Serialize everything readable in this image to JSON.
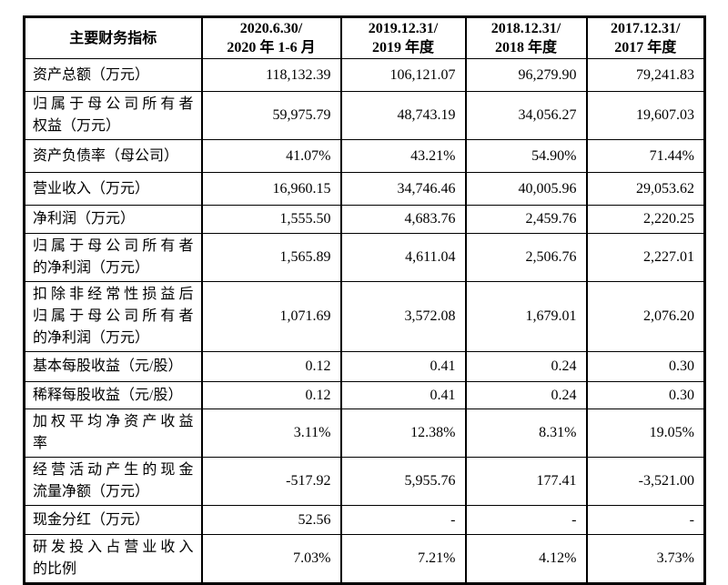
{
  "colors": {
    "border": "#000000",
    "text": "#000000",
    "background": "#ffffff"
  },
  "table": {
    "header": {
      "indicator_label": "主要财务指标",
      "periods": [
        "2020.6.30/\n2020 年 1-6 月",
        "2019.12.31/\n2019 年度",
        "2018.12.31/\n2018 年度",
        "2017.12.31/\n2017 年度"
      ]
    },
    "rows": [
      {
        "label": "资产总额（万元）",
        "values": [
          "118,132.39",
          "106,121.07",
          "96,279.90",
          "79,241.83"
        ]
      },
      {
        "label": "归属于母公司所有者\n权益（万元）",
        "values": [
          "59,975.79",
          "48,743.19",
          "34,056.27",
          "19,607.03"
        ]
      },
      {
        "label": "资产负债率（母公司）",
        "values": [
          "41.07%",
          "43.21%",
          "54.90%",
          "71.44%"
        ]
      },
      {
        "label": "营业收入（万元）",
        "values": [
          "16,960.15",
          "34,746.46",
          "40,005.96",
          "29,053.62"
        ]
      },
      {
        "label": "净利润（万元）",
        "values": [
          "1,555.50",
          "4,683.76",
          "2,459.76",
          "2,220.25"
        ]
      },
      {
        "label": "归属于母公司所有者\n的净利润（万元）",
        "values": [
          "1,565.89",
          "4,611.04",
          "2,506.76",
          "2,227.01"
        ]
      },
      {
        "label": "扣除非经常性损益后\n归属于母公司所有者\n的净利润（万元）",
        "values": [
          "1,071.69",
          "3,572.08",
          "1,679.01",
          "2,076.20"
        ]
      },
      {
        "label": "基本每股收益（元/股）",
        "values": [
          "0.12",
          "0.41",
          "0.24",
          "0.30"
        ]
      },
      {
        "label": "稀释每股收益（元/股）",
        "values": [
          "0.12",
          "0.41",
          "0.24",
          "0.30"
        ]
      },
      {
        "label": "加权平均净资产收益\n率",
        "values": [
          "3.11%",
          "12.38%",
          "8.31%",
          "19.05%"
        ]
      },
      {
        "label": "经营活动产生的现金\n流量净额（万元）",
        "values": [
          "-517.92",
          "5,955.76",
          "177.41",
          "-3,521.00"
        ]
      },
      {
        "label": "现金分红（万元）",
        "values": [
          "52.56",
          "-",
          "-",
          "-"
        ]
      },
      {
        "label": "研发投入占营业收入\n的比例",
        "values": [
          "7.03%",
          "7.21%",
          "4.12%",
          "3.73%"
        ]
      }
    ]
  }
}
